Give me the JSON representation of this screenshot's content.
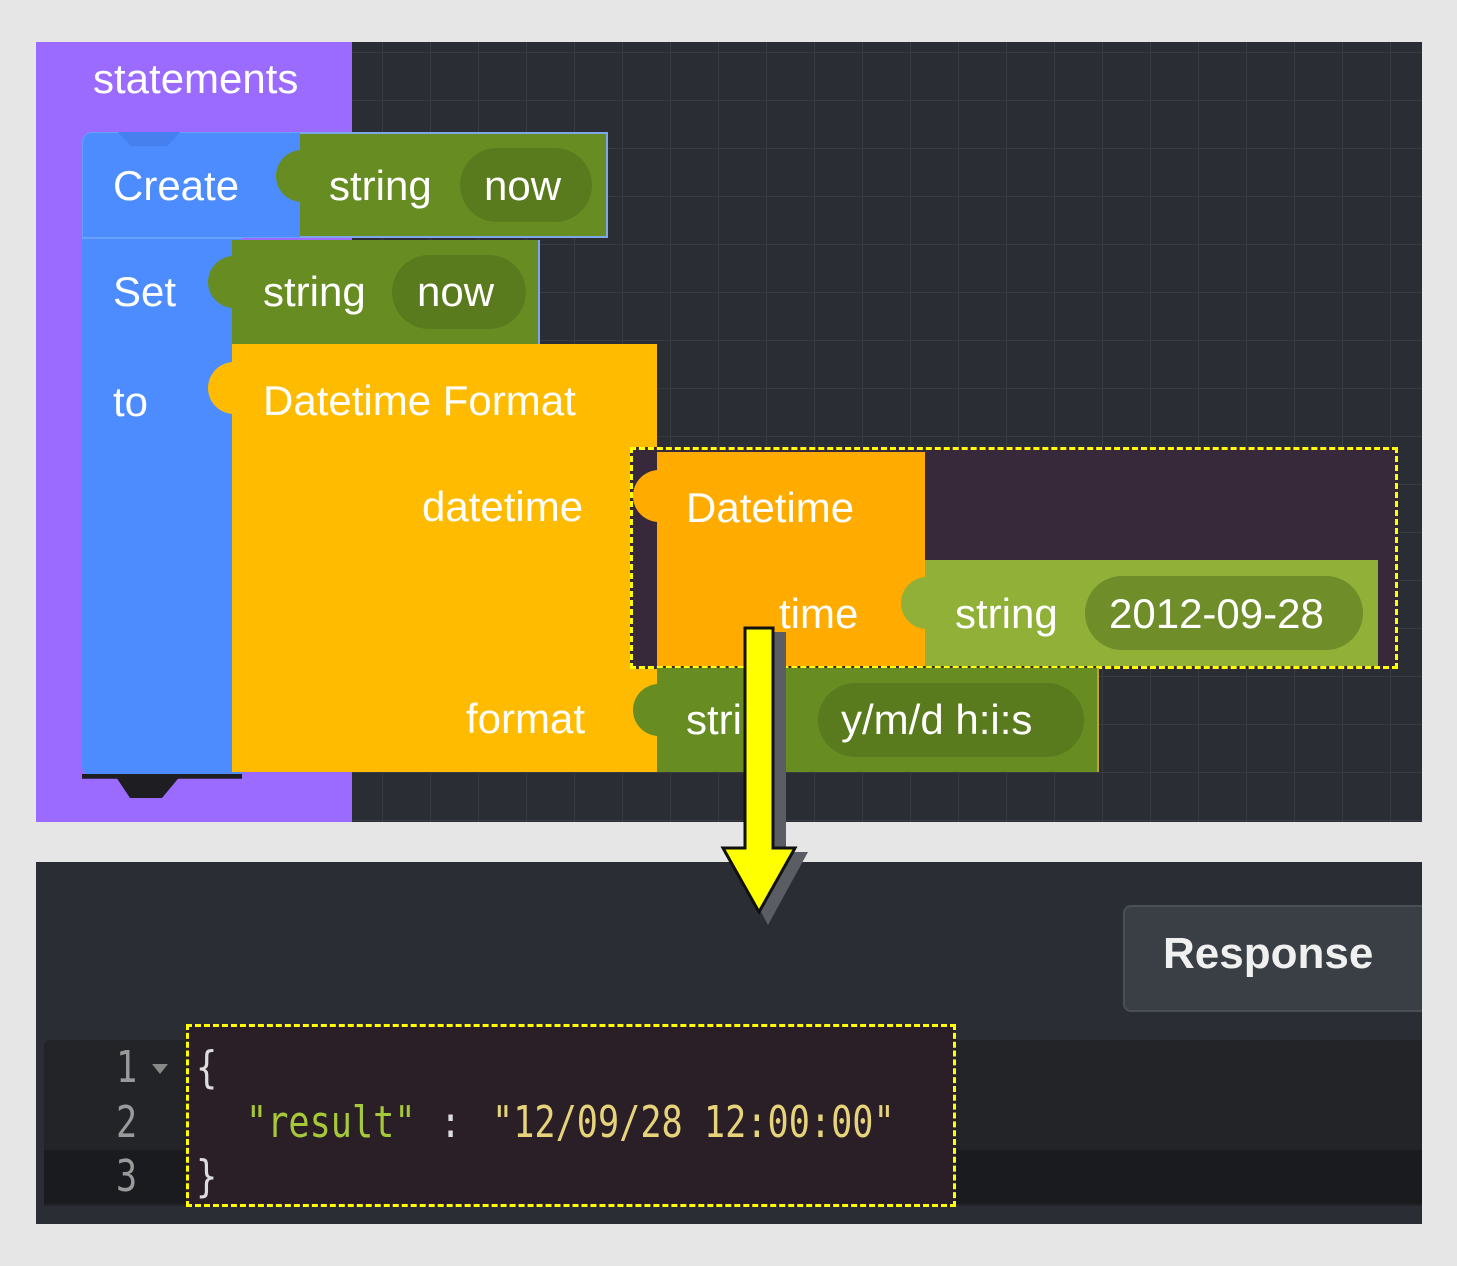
{
  "workspace": {
    "statements_block": {
      "label": "statements",
      "color": "#9b6bff"
    },
    "create_block": {
      "label": "Create",
      "type_label": "string",
      "value": "now",
      "color": "#4c8cff"
    },
    "set_block": {
      "label": "Set",
      "to_label": "to",
      "type_label": "string",
      "value": "now"
    },
    "datetime_format_block": {
      "label": "Datetime Format",
      "datetime_label": "datetime",
      "format_label": "format",
      "color": "#ffbb00"
    },
    "datetime_block": {
      "label": "Datetime",
      "time_label": "time",
      "color": "#ffab00"
    },
    "time_string_block": {
      "type_label": "string",
      "value": "2012-09-28",
      "color": "#90b038"
    },
    "format_string_block": {
      "type_label": "string",
      "value": "y/m/d h:i:s",
      "color": "#678c22"
    },
    "highlight_color": "#ffff00"
  },
  "response_panel": {
    "response_button": "Response",
    "editor": {
      "line_numbers": [
        "1",
        "2",
        "3"
      ],
      "lines": [
        "{",
        "\"result\"",
        ": ",
        "\"12/09/28 12:00:00\"",
        "}"
      ],
      "key_color": "#a6c93a",
      "string_color": "#e6d37a"
    }
  }
}
